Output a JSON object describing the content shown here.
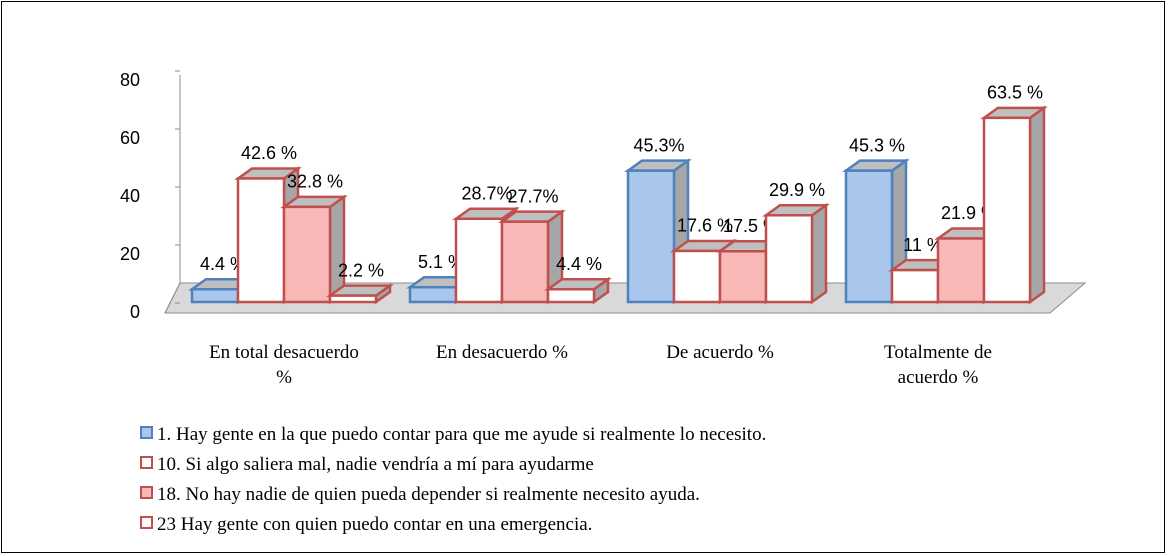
{
  "chart_data": {
    "type": "bar3d",
    "categories": [
      "En total desacuerdo %",
      "En desacuerdo %",
      "De acuerdo %",
      "Totalmente de acuerdo %"
    ],
    "series": [
      {
        "name": "1. Hay gente en la que puedo contar para que me ayude si realmente lo necesito.",
        "color": "#a9c6ec",
        "edge": "#4f81bd",
        "values": [
          4.4,
          5.1,
          45.3,
          45.3
        ],
        "value_labels": [
          "4.4 %",
          "5.1 %",
          "45.3%",
          "45.3 %"
        ]
      },
      {
        "name": "10. Si algo saliera mal, nadie vendría a mí para ayudarme",
        "color": "#ffffff",
        "edge": "#c0504d",
        "values": [
          42.6,
          28.7,
          17.6,
          11
        ],
        "value_labels": [
          "42.6 %",
          "28.7%",
          "17.6 %",
          "11 %"
        ]
      },
      {
        "name": "18. No hay nadie de quien pueda depender si realmente necesito ayuda.",
        "color": "#f9b8b8",
        "edge": "#c0504d",
        "values": [
          32.8,
          27.7,
          17.5,
          21.9
        ],
        "value_labels": [
          "32.8 %",
          "27.7%",
          "17.5 %",
          "21.9 %"
        ]
      },
      {
        "name": "23 Hay gente con quien puedo contar en una emergencia.",
        "color": "#ffffff",
        "edge": "#c0504d",
        "values": [
          2.2,
          4.4,
          29.9,
          63.5
        ],
        "value_labels": [
          "2.2 %",
          "4.4 %",
          "29.9 %",
          "63.5 %"
        ]
      }
    ],
    "ylim": [
      0,
      80
    ],
    "yticks": [
      0,
      20,
      40,
      60,
      80
    ],
    "legend": "bottom"
  }
}
